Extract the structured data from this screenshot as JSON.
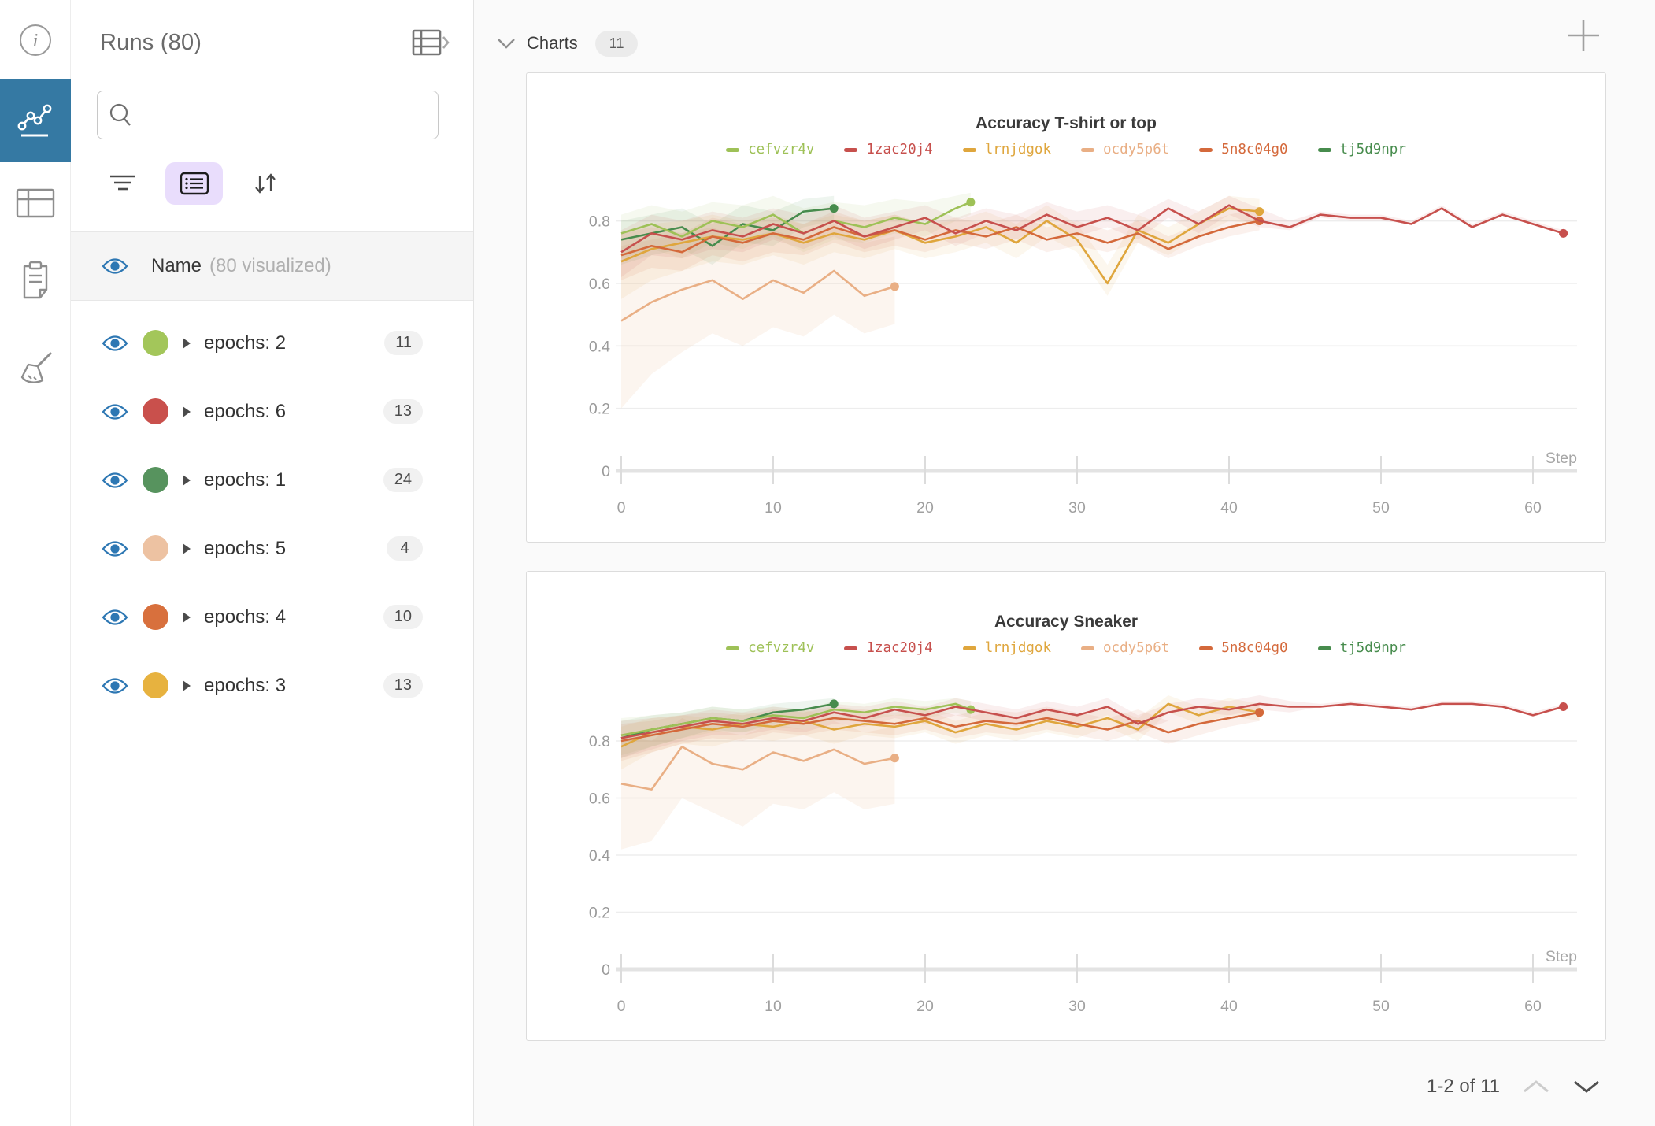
{
  "sidebar": {
    "icons": [
      {
        "name": "info-icon"
      },
      {
        "name": "line-chart-icon",
        "active": true
      },
      {
        "name": "table-panel-icon"
      },
      {
        "name": "clipboard-icon"
      },
      {
        "name": "broom-icon"
      }
    ],
    "active_tile_color": "#3579a3"
  },
  "runs_panel": {
    "title": "Runs (80)",
    "search": {
      "value": "",
      "placeholder": ""
    },
    "header_row": {
      "label": "Name",
      "note": "(80 visualized)"
    },
    "items": [
      {
        "label": "epochs: 2",
        "count": "11",
        "color": "#a3c65a"
      },
      {
        "label": "epochs: 6",
        "count": "13",
        "color": "#c9504c"
      },
      {
        "label": "epochs: 1",
        "count": "24",
        "color": "#57935e"
      },
      {
        "label": "epochs: 5",
        "count": "4",
        "color": "#edc2a2"
      },
      {
        "label": "epochs: 4",
        "count": "10",
        "color": "#d8703d"
      },
      {
        "label": "epochs: 3",
        "count": "13",
        "color": "#e7b23f"
      }
    ],
    "eye_color": "#2d77b3",
    "list_button_bg": "#e9ddfc"
  },
  "main": {
    "section_title": "Charts",
    "section_count": "11",
    "pagination": {
      "label": "1-2 of 11"
    }
  },
  "chart_data": [
    {
      "type": "line",
      "title": "Accuracy T-shirt or top",
      "xlabel": "Step",
      "ylabel": "",
      "x_ticks": [
        0,
        10,
        20,
        30,
        40,
        50,
        60
      ],
      "y_ticks": [
        0,
        0.2,
        0.4,
        0.6,
        0.8
      ],
      "ylim": [
        0,
        0.95
      ],
      "grid": true,
      "legend_position": "top",
      "series": [
        {
          "name": "cefvzr4v",
          "color": "#9ec157",
          "x": [
            0,
            2,
            4,
            6,
            8,
            10,
            12,
            14,
            16,
            18,
            20,
            22,
            23
          ],
          "y": [
            0.76,
            0.79,
            0.75,
            0.8,
            0.78,
            0.82,
            0.76,
            0.8,
            0.78,
            0.81,
            0.79,
            0.84,
            0.86
          ],
          "band_lower": [
            0.68,
            0.71,
            0.68,
            0.73,
            0.71,
            0.75,
            0.7,
            0.74,
            0.73,
            0.76,
            0.75,
            0.8,
            0.82
          ],
          "band_upper": [
            0.82,
            0.85,
            0.83,
            0.86,
            0.85,
            0.88,
            0.84,
            0.86,
            0.85,
            0.87,
            0.86,
            0.88,
            0.89
          ]
        },
        {
          "name": "1zac20j4",
          "color": "#c7504d",
          "x": [
            0,
            2,
            4,
            6,
            8,
            10,
            12,
            14,
            16,
            18,
            20,
            22,
            24,
            26,
            28,
            30,
            32,
            34,
            36,
            38,
            40,
            42,
            44,
            46,
            48,
            50,
            52,
            54,
            56,
            58,
            60,
            62
          ],
          "y": [
            0.7,
            0.76,
            0.74,
            0.77,
            0.75,
            0.79,
            0.76,
            0.8,
            0.75,
            0.78,
            0.81,
            0.76,
            0.8,
            0.77,
            0.82,
            0.78,
            0.81,
            0.77,
            0.84,
            0.79,
            0.85,
            0.8,
            0.78,
            0.82,
            0.81,
            0.81,
            0.79,
            0.84,
            0.78,
            0.82,
            0.79,
            0.76
          ],
          "band_lower": [
            0.62,
            0.69,
            0.68,
            0.71,
            0.7,
            0.74,
            0.71,
            0.75,
            0.71,
            0.74,
            0.77,
            0.72,
            0.76,
            0.74,
            0.79,
            0.75,
            0.78,
            0.74,
            0.81,
            0.76,
            0.82,
            0.78,
            0.77,
            0.81,
            0.8,
            0.8,
            0.79,
            0.84,
            0.78,
            0.82,
            0.79,
            0.76
          ],
          "band_upper": [
            0.77,
            0.82,
            0.8,
            0.83,
            0.81,
            0.84,
            0.82,
            0.85,
            0.81,
            0.83,
            0.85,
            0.81,
            0.84,
            0.82,
            0.86,
            0.83,
            0.85,
            0.82,
            0.87,
            0.83,
            0.88,
            0.84,
            0.8,
            0.83,
            0.82,
            0.82,
            0.8,
            0.85,
            0.79,
            0.83,
            0.8,
            0.77
          ]
        },
        {
          "name": "lrnjdgok",
          "color": "#dfa63d",
          "x": [
            0,
            2,
            4,
            6,
            8,
            10,
            12,
            14,
            16,
            18,
            20,
            22,
            24,
            26,
            28,
            30,
            32,
            34,
            36,
            38,
            40,
            42
          ],
          "y": [
            0.67,
            0.71,
            0.73,
            0.75,
            0.74,
            0.76,
            0.73,
            0.76,
            0.74,
            0.77,
            0.73,
            0.75,
            0.78,
            0.73,
            0.8,
            0.74,
            0.6,
            0.77,
            0.73,
            0.79,
            0.84,
            0.83
          ],
          "band_lower": [
            0.55,
            0.61,
            0.64,
            0.67,
            0.66,
            0.69,
            0.66,
            0.7,
            0.68,
            0.71,
            0.68,
            0.7,
            0.73,
            0.68,
            0.75,
            0.7,
            0.56,
            0.73,
            0.69,
            0.75,
            0.8,
            0.79
          ],
          "band_upper": [
            0.76,
            0.79,
            0.8,
            0.82,
            0.8,
            0.82,
            0.79,
            0.82,
            0.8,
            0.82,
            0.79,
            0.8,
            0.83,
            0.79,
            0.85,
            0.79,
            0.66,
            0.82,
            0.78,
            0.83,
            0.88,
            0.87
          ]
        },
        {
          "name": "ocdy5p6t",
          "color": "#e9af85",
          "x": [
            0,
            2,
            4,
            6,
            8,
            10,
            12,
            14,
            16,
            18
          ],
          "y": [
            0.48,
            0.54,
            0.58,
            0.61,
            0.55,
            0.61,
            0.57,
            0.64,
            0.56,
            0.59
          ],
          "band_lower": [
            0.2,
            0.31,
            0.38,
            0.44,
            0.4,
            0.46,
            0.43,
            0.5,
            0.44,
            0.47
          ],
          "band_upper": [
            0.72,
            0.74,
            0.76,
            0.78,
            0.74,
            0.77,
            0.74,
            0.79,
            0.73,
            0.75
          ]
        },
        {
          "name": "5n8c04g0",
          "color": "#d4693b",
          "x": [
            0,
            2,
            4,
            6,
            8,
            10,
            12,
            14,
            16,
            18,
            20,
            22,
            24,
            26,
            28,
            30,
            32,
            34,
            36,
            38,
            40,
            42
          ],
          "y": [
            0.69,
            0.72,
            0.7,
            0.75,
            0.73,
            0.76,
            0.74,
            0.78,
            0.75,
            0.77,
            0.74,
            0.77,
            0.75,
            0.78,
            0.74,
            0.76,
            0.73,
            0.76,
            0.71,
            0.75,
            0.78,
            0.8
          ],
          "band_lower": [
            0.61,
            0.65,
            0.64,
            0.69,
            0.67,
            0.7,
            0.69,
            0.73,
            0.7,
            0.72,
            0.7,
            0.73,
            0.71,
            0.74,
            0.7,
            0.72,
            0.7,
            0.73,
            0.68,
            0.72,
            0.75,
            0.77
          ],
          "band_upper": [
            0.76,
            0.78,
            0.76,
            0.81,
            0.79,
            0.81,
            0.79,
            0.83,
            0.8,
            0.82,
            0.79,
            0.81,
            0.79,
            0.82,
            0.78,
            0.8,
            0.77,
            0.8,
            0.75,
            0.79,
            0.82,
            0.84
          ]
        },
        {
          "name": "tj5d9npr",
          "color": "#478c4d",
          "x": [
            0,
            2,
            4,
            6,
            8,
            10,
            12,
            14
          ],
          "y": [
            0.74,
            0.76,
            0.78,
            0.72,
            0.79,
            0.77,
            0.83,
            0.84
          ],
          "band_lower": [
            0.66,
            0.69,
            0.71,
            0.66,
            0.73,
            0.72,
            0.78,
            0.8
          ],
          "band_upper": [
            0.8,
            0.82,
            0.84,
            0.79,
            0.85,
            0.83,
            0.87,
            0.88
          ]
        }
      ]
    },
    {
      "type": "line",
      "title": "Accuracy Sneaker",
      "xlabel": "Step",
      "ylabel": "",
      "x_ticks": [
        0,
        10,
        20,
        30,
        40,
        50,
        60
      ],
      "y_ticks": [
        0,
        0.2,
        0.4,
        0.6,
        0.8
      ],
      "ylim": [
        0,
        1.04
      ],
      "grid": true,
      "legend_position": "top",
      "series": [
        {
          "name": "cefvzr4v",
          "color": "#9ec157",
          "x": [
            0,
            2,
            4,
            6,
            8,
            10,
            12,
            14,
            16,
            18,
            20,
            22,
            23
          ],
          "y": [
            0.82,
            0.84,
            0.86,
            0.88,
            0.87,
            0.89,
            0.88,
            0.91,
            0.9,
            0.92,
            0.91,
            0.93,
            0.91
          ],
          "band_lower": [
            0.75,
            0.78,
            0.81,
            0.83,
            0.83,
            0.85,
            0.84,
            0.87,
            0.87,
            0.89,
            0.88,
            0.9,
            0.88
          ],
          "band_upper": [
            0.88,
            0.89,
            0.9,
            0.92,
            0.91,
            0.92,
            0.91,
            0.94,
            0.93,
            0.95,
            0.94,
            0.95,
            0.94
          ]
        },
        {
          "name": "1zac20j4",
          "color": "#c7504d",
          "x": [
            0,
            2,
            4,
            6,
            8,
            10,
            12,
            14,
            16,
            18,
            20,
            22,
            24,
            26,
            28,
            30,
            32,
            34,
            36,
            38,
            40,
            42,
            44,
            46,
            48,
            50,
            52,
            54,
            56,
            58,
            60,
            62
          ],
          "y": [
            0.81,
            0.83,
            0.85,
            0.87,
            0.86,
            0.88,
            0.87,
            0.9,
            0.88,
            0.91,
            0.89,
            0.92,
            0.9,
            0.88,
            0.91,
            0.89,
            0.92,
            0.86,
            0.9,
            0.92,
            0.91,
            0.93,
            0.92,
            0.92,
            0.93,
            0.92,
            0.91,
            0.93,
            0.93,
            0.92,
            0.89,
            0.92
          ],
          "band_lower": [
            0.74,
            0.77,
            0.8,
            0.82,
            0.82,
            0.84,
            0.83,
            0.86,
            0.85,
            0.88,
            0.86,
            0.89,
            0.87,
            0.85,
            0.88,
            0.86,
            0.89,
            0.83,
            0.87,
            0.9,
            0.89,
            0.91,
            0.9,
            0.92,
            0.93,
            0.92,
            0.91,
            0.93,
            0.93,
            0.92,
            0.89,
            0.92
          ],
          "band_upper": [
            0.87,
            0.88,
            0.89,
            0.91,
            0.9,
            0.92,
            0.91,
            0.93,
            0.92,
            0.94,
            0.92,
            0.95,
            0.93,
            0.91,
            0.94,
            0.92,
            0.95,
            0.89,
            0.93,
            0.95,
            0.94,
            0.96,
            0.94,
            0.93,
            0.94,
            0.93,
            0.92,
            0.94,
            0.94,
            0.93,
            0.9,
            0.93
          ]
        },
        {
          "name": "lrnjdgok",
          "color": "#dfa63d",
          "x": [
            0,
            2,
            4,
            6,
            8,
            10,
            12,
            14,
            16,
            18,
            20,
            22,
            24,
            26,
            28,
            30,
            32,
            34,
            36,
            38,
            40,
            42
          ],
          "y": [
            0.78,
            0.83,
            0.85,
            0.84,
            0.86,
            0.85,
            0.87,
            0.84,
            0.86,
            0.85,
            0.87,
            0.83,
            0.86,
            0.84,
            0.87,
            0.85,
            0.88,
            0.84,
            0.93,
            0.89,
            0.92,
            0.9
          ],
          "band_lower": [
            0.7,
            0.76,
            0.79,
            0.78,
            0.81,
            0.8,
            0.82,
            0.79,
            0.82,
            0.81,
            0.83,
            0.79,
            0.82,
            0.8,
            0.83,
            0.81,
            0.85,
            0.8,
            0.9,
            0.86,
            0.89,
            0.87
          ],
          "band_upper": [
            0.85,
            0.88,
            0.89,
            0.88,
            0.9,
            0.89,
            0.91,
            0.88,
            0.9,
            0.89,
            0.91,
            0.87,
            0.9,
            0.88,
            0.91,
            0.89,
            0.92,
            0.88,
            0.96,
            0.92,
            0.95,
            0.93
          ]
        },
        {
          "name": "ocdy5p6t",
          "color": "#e9af85",
          "x": [
            0,
            2,
            4,
            6,
            8,
            10,
            12,
            14,
            16,
            18
          ],
          "y": [
            0.65,
            0.63,
            0.78,
            0.72,
            0.7,
            0.76,
            0.73,
            0.77,
            0.72,
            0.74
          ],
          "band_lower": [
            0.42,
            0.45,
            0.6,
            0.55,
            0.5,
            0.58,
            0.56,
            0.62,
            0.56,
            0.58
          ],
          "band_upper": [
            0.82,
            0.8,
            0.88,
            0.84,
            0.82,
            0.86,
            0.84,
            0.87,
            0.83,
            0.85
          ]
        },
        {
          "name": "5n8c04g0",
          "color": "#d4693b",
          "x": [
            0,
            2,
            4,
            6,
            8,
            10,
            12,
            14,
            16,
            18,
            20,
            22,
            24,
            26,
            28,
            30,
            32,
            34,
            36,
            38,
            40,
            42
          ],
          "y": [
            0.8,
            0.82,
            0.84,
            0.86,
            0.85,
            0.87,
            0.86,
            0.88,
            0.87,
            0.86,
            0.88,
            0.85,
            0.87,
            0.86,
            0.88,
            0.86,
            0.84,
            0.87,
            0.83,
            0.86,
            0.88,
            0.9
          ],
          "band_lower": [
            0.73,
            0.76,
            0.79,
            0.81,
            0.8,
            0.83,
            0.82,
            0.84,
            0.83,
            0.82,
            0.84,
            0.81,
            0.83,
            0.82,
            0.84,
            0.82,
            0.8,
            0.83,
            0.79,
            0.82,
            0.85,
            0.87
          ],
          "band_upper": [
            0.86,
            0.87,
            0.89,
            0.9,
            0.89,
            0.91,
            0.9,
            0.92,
            0.91,
            0.9,
            0.92,
            0.89,
            0.91,
            0.9,
            0.92,
            0.9,
            0.88,
            0.91,
            0.87,
            0.9,
            0.92,
            0.93
          ]
        },
        {
          "name": "tj5d9npr",
          "color": "#478c4d",
          "x": [
            0,
            2,
            4,
            6,
            8,
            10,
            12,
            14
          ],
          "y": [
            0.81,
            0.84,
            0.86,
            0.88,
            0.87,
            0.9,
            0.91,
            0.93
          ],
          "band_lower": [
            0.74,
            0.78,
            0.81,
            0.84,
            0.83,
            0.86,
            0.88,
            0.9
          ],
          "band_upper": [
            0.87,
            0.89,
            0.9,
            0.92,
            0.91,
            0.93,
            0.94,
            0.95
          ]
        }
      ]
    }
  ]
}
